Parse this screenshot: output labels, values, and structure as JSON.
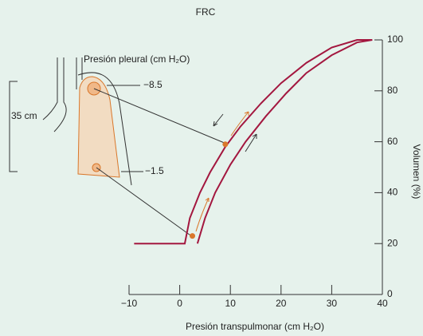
{
  "chart_data": {
    "type": "line",
    "title": "FRC",
    "x_label": "Presión transpulmonar (cm H₂O)",
    "y_label": "Volumen (%)",
    "xlim": [
      -10,
      40
    ],
    "ylim": [
      0,
      100
    ],
    "xticks": [
      {
        "value": -10,
        "label": "−10"
      },
      0,
      10,
      20,
      30,
      40
    ],
    "yticks": [
      0,
      20,
      40,
      60,
      80,
      100
    ],
    "series": [
      {
        "color": "#a3173f",
        "x": [
          -9,
          1,
          2,
          4,
          6,
          9,
          12,
          16,
          20,
          25,
          30,
          35,
          38
        ],
        "values": [
          20,
          20,
          30,
          40,
          48,
          58,
          66,
          75,
          83,
          91,
          97,
          100,
          100
        ]
      },
      {
        "color": "#a3173f",
        "x": [
          3.5,
          5,
          7,
          10,
          13,
          17,
          21,
          25,
          30,
          35,
          38
        ],
        "values": [
          20,
          30,
          40,
          51,
          60,
          70,
          79,
          87,
          94,
          99,
          100
        ]
      }
    ],
    "markers": {
      "color": "#d9772b",
      "x": [
        2.5,
        9
      ],
      "values": [
        23,
        59
      ]
    }
  },
  "diagram": {
    "pleural_label": "Presión pleural (cm H₂O)",
    "apex_pressure": "−8.5",
    "base_pressure": "−1.5",
    "height": "35 cm"
  }
}
